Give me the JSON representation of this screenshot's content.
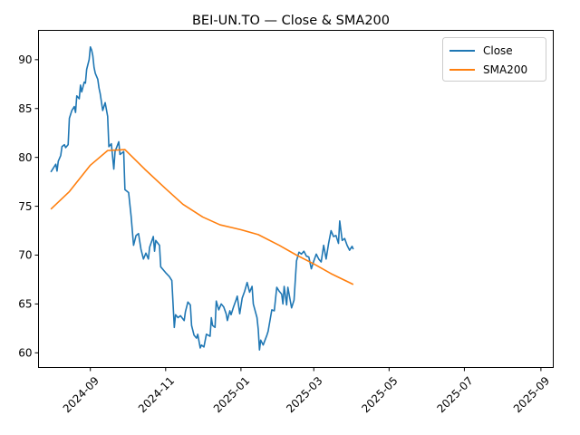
{
  "chart_data": {
    "type": "line",
    "title": "BEI-UN.TO — Close & SMA200",
    "xlabel": "",
    "ylabel": "",
    "x_range": [
      "2024-07-21",
      "2025-09-11"
    ],
    "ylim": [
      58.5,
      93.0
    ],
    "y_ticks": [
      60,
      65,
      70,
      75,
      80,
      85,
      90
    ],
    "x_ticks": [
      {
        "date": "2024-09-01",
        "label": "2024-09"
      },
      {
        "date": "2024-11-01",
        "label": "2024-11"
      },
      {
        "date": "2025-01-01",
        "label": "2025-01"
      },
      {
        "date": "2025-03-01",
        "label": "2025-03"
      },
      {
        "date": "2025-05-01",
        "label": "2025-05"
      },
      {
        "date": "2025-07-01",
        "label": "2025-07"
      },
      {
        "date": "2025-09-01",
        "label": "2025-09"
      }
    ],
    "grid": false,
    "legend_position": "top-right",
    "series": [
      {
        "name": "Close",
        "color": "#1f77b4",
        "points": [
          [
            "2024-07-31",
            78.5
          ],
          [
            "2024-08-04",
            79.3
          ],
          [
            "2024-08-05",
            78.6
          ],
          [
            "2024-08-06",
            79.6
          ],
          [
            "2024-08-08",
            80.2
          ],
          [
            "2024-08-09",
            81.1
          ],
          [
            "2024-08-11",
            81.3
          ],
          [
            "2024-08-12",
            81.0
          ],
          [
            "2024-08-14",
            81.3
          ],
          [
            "2024-08-15",
            84.0
          ],
          [
            "2024-08-17",
            84.8
          ],
          [
            "2024-08-19",
            85.2
          ],
          [
            "2024-08-20",
            84.6
          ],
          [
            "2024-08-21",
            86.3
          ],
          [
            "2024-08-23",
            86.0
          ],
          [
            "2024-08-24",
            87.4
          ],
          [
            "2024-08-25",
            86.7
          ],
          [
            "2024-08-27",
            87.7
          ],
          [
            "2024-08-28",
            87.6
          ],
          [
            "2024-08-29",
            89.0
          ],
          [
            "2024-08-31",
            90.0
          ],
          [
            "2024-09-01",
            91.3
          ],
          [
            "2024-09-02",
            91.0
          ],
          [
            "2024-09-03",
            90.4
          ],
          [
            "2024-09-04",
            89.2
          ],
          [
            "2024-09-05",
            88.6
          ],
          [
            "2024-09-07",
            88.0
          ],
          [
            "2024-09-08",
            87.1
          ],
          [
            "2024-09-09",
            86.5
          ],
          [
            "2024-09-11",
            84.8
          ],
          [
            "2024-09-13",
            85.6
          ],
          [
            "2024-09-15",
            84.2
          ],
          [
            "2024-09-16",
            81.1
          ],
          [
            "2024-09-18",
            81.4
          ],
          [
            "2024-09-20",
            78.8
          ],
          [
            "2024-09-21",
            80.6
          ],
          [
            "2024-09-24",
            81.6
          ],
          [
            "2024-09-25",
            80.3
          ],
          [
            "2024-09-28",
            80.6
          ],
          [
            "2024-09-29",
            76.7
          ],
          [
            "2024-10-02",
            76.4
          ],
          [
            "2024-10-04",
            74.0
          ],
          [
            "2024-10-06",
            71.0
          ],
          [
            "2024-10-08",
            72.0
          ],
          [
            "2024-10-10",
            72.2
          ],
          [
            "2024-10-12",
            70.6
          ],
          [
            "2024-10-14",
            69.6
          ],
          [
            "2024-10-16",
            70.2
          ],
          [
            "2024-10-18",
            69.6
          ],
          [
            "2024-10-19",
            70.8
          ],
          [
            "2024-10-22",
            71.9
          ],
          [
            "2024-10-23",
            70.4
          ],
          [
            "2024-10-24",
            71.5
          ],
          [
            "2024-10-27",
            71.0
          ],
          [
            "2024-10-28",
            68.8
          ],
          [
            "2024-11-01",
            68.2
          ],
          [
            "2024-11-04",
            67.8
          ],
          [
            "2024-11-06",
            67.4
          ],
          [
            "2024-11-08",
            62.6
          ],
          [
            "2024-11-09",
            63.9
          ],
          [
            "2024-11-11",
            63.6
          ],
          [
            "2024-11-13",
            63.8
          ],
          [
            "2024-11-16",
            63.3
          ],
          [
            "2024-11-17",
            64.2
          ],
          [
            "2024-11-19",
            65.2
          ],
          [
            "2024-11-21",
            64.9
          ],
          [
            "2024-11-22",
            62.8
          ],
          [
            "2024-11-24",
            61.8
          ],
          [
            "2024-11-26",
            61.5
          ],
          [
            "2024-11-27",
            61.9
          ],
          [
            "2024-11-29",
            60.5
          ],
          [
            "2024-11-30",
            60.8
          ],
          [
            "2024-12-02",
            60.6
          ],
          [
            "2024-12-04",
            61.9
          ],
          [
            "2024-12-07",
            61.7
          ],
          [
            "2024-12-08",
            63.6
          ],
          [
            "2024-12-09",
            62.8
          ],
          [
            "2024-12-11",
            62.6
          ],
          [
            "2024-12-12",
            65.3
          ],
          [
            "2024-12-14",
            64.4
          ],
          [
            "2024-12-16",
            65.0
          ],
          [
            "2024-12-18",
            64.7
          ],
          [
            "2024-12-20",
            64.0
          ],
          [
            "2024-12-21",
            63.3
          ],
          [
            "2024-12-23",
            64.3
          ],
          [
            "2024-12-24",
            63.9
          ],
          [
            "2024-12-26",
            64.7
          ],
          [
            "2024-12-28",
            65.4
          ],
          [
            "2024-12-29",
            65.8
          ],
          [
            "2024-12-31",
            64.0
          ],
          [
            "2025-01-02",
            65.6
          ],
          [
            "2025-01-04",
            66.3
          ],
          [
            "2025-01-06",
            67.2
          ],
          [
            "2025-01-08",
            66.2
          ],
          [
            "2025-01-10",
            66.8
          ],
          [
            "2025-01-11",
            65.0
          ],
          [
            "2025-01-14",
            63.6
          ],
          [
            "2025-01-15",
            62.4
          ],
          [
            "2025-01-16",
            60.3
          ],
          [
            "2025-01-17",
            61.3
          ],
          [
            "2025-01-19",
            60.8
          ],
          [
            "2025-01-22",
            61.8
          ],
          [
            "2025-01-23",
            62.2
          ],
          [
            "2025-01-26",
            64.4
          ],
          [
            "2025-01-28",
            64.3
          ],
          [
            "2025-01-30",
            66.7
          ],
          [
            "2025-02-01",
            66.3
          ],
          [
            "2025-02-03",
            66.0
          ],
          [
            "2025-02-04",
            65.0
          ],
          [
            "2025-02-05",
            66.8
          ],
          [
            "2025-02-07",
            64.9
          ],
          [
            "2025-02-08",
            66.7
          ],
          [
            "2025-02-09",
            66.0
          ],
          [
            "2025-02-11",
            64.6
          ],
          [
            "2025-02-13",
            65.4
          ],
          [
            "2025-02-15",
            69.4
          ],
          [
            "2025-02-17",
            70.3
          ],
          [
            "2025-02-19",
            70.1
          ],
          [
            "2025-02-21",
            70.4
          ],
          [
            "2025-02-23",
            69.9
          ],
          [
            "2025-02-25",
            69.8
          ],
          [
            "2025-02-27",
            68.6
          ],
          [
            "2025-03-01",
            69.4
          ],
          [
            "2025-03-03",
            70.1
          ],
          [
            "2025-03-05",
            69.6
          ],
          [
            "2025-03-07",
            69.3
          ],
          [
            "2025-03-09",
            71.0
          ],
          [
            "2025-03-11",
            69.6
          ],
          [
            "2025-03-13",
            71.2
          ],
          [
            "2025-03-15",
            72.5
          ],
          [
            "2025-03-17",
            71.9
          ],
          [
            "2025-03-19",
            72.0
          ],
          [
            "2025-03-21",
            71.2
          ],
          [
            "2025-03-22",
            73.5
          ],
          [
            "2025-03-24",
            71.5
          ],
          [
            "2025-03-26",
            71.7
          ],
          [
            "2025-03-28",
            71.0
          ],
          [
            "2025-03-30",
            70.5
          ],
          [
            "2025-04-01",
            70.9
          ],
          [
            "2025-04-02",
            70.6
          ]
        ]
      },
      {
        "name": "SMA200",
        "color": "#ff7f0e",
        "points": [
          [
            "2024-07-31",
            74.7
          ],
          [
            "2024-08-15",
            76.5
          ],
          [
            "2024-09-01",
            79.2
          ],
          [
            "2024-09-15",
            80.7
          ],
          [
            "2024-09-29",
            80.8
          ],
          [
            "2024-10-15",
            78.8
          ],
          [
            "2024-11-01",
            76.8
          ],
          [
            "2024-11-15",
            75.2
          ],
          [
            "2024-12-01",
            73.9
          ],
          [
            "2024-12-15",
            73.1
          ],
          [
            "2025-01-01",
            72.6
          ],
          [
            "2025-01-15",
            72.1
          ],
          [
            "2025-02-01",
            71.0
          ],
          [
            "2025-02-15",
            70.0
          ],
          [
            "2025-03-01",
            69.1
          ],
          [
            "2025-03-15",
            68.1
          ],
          [
            "2025-04-02",
            67.0
          ]
        ]
      }
    ]
  }
}
